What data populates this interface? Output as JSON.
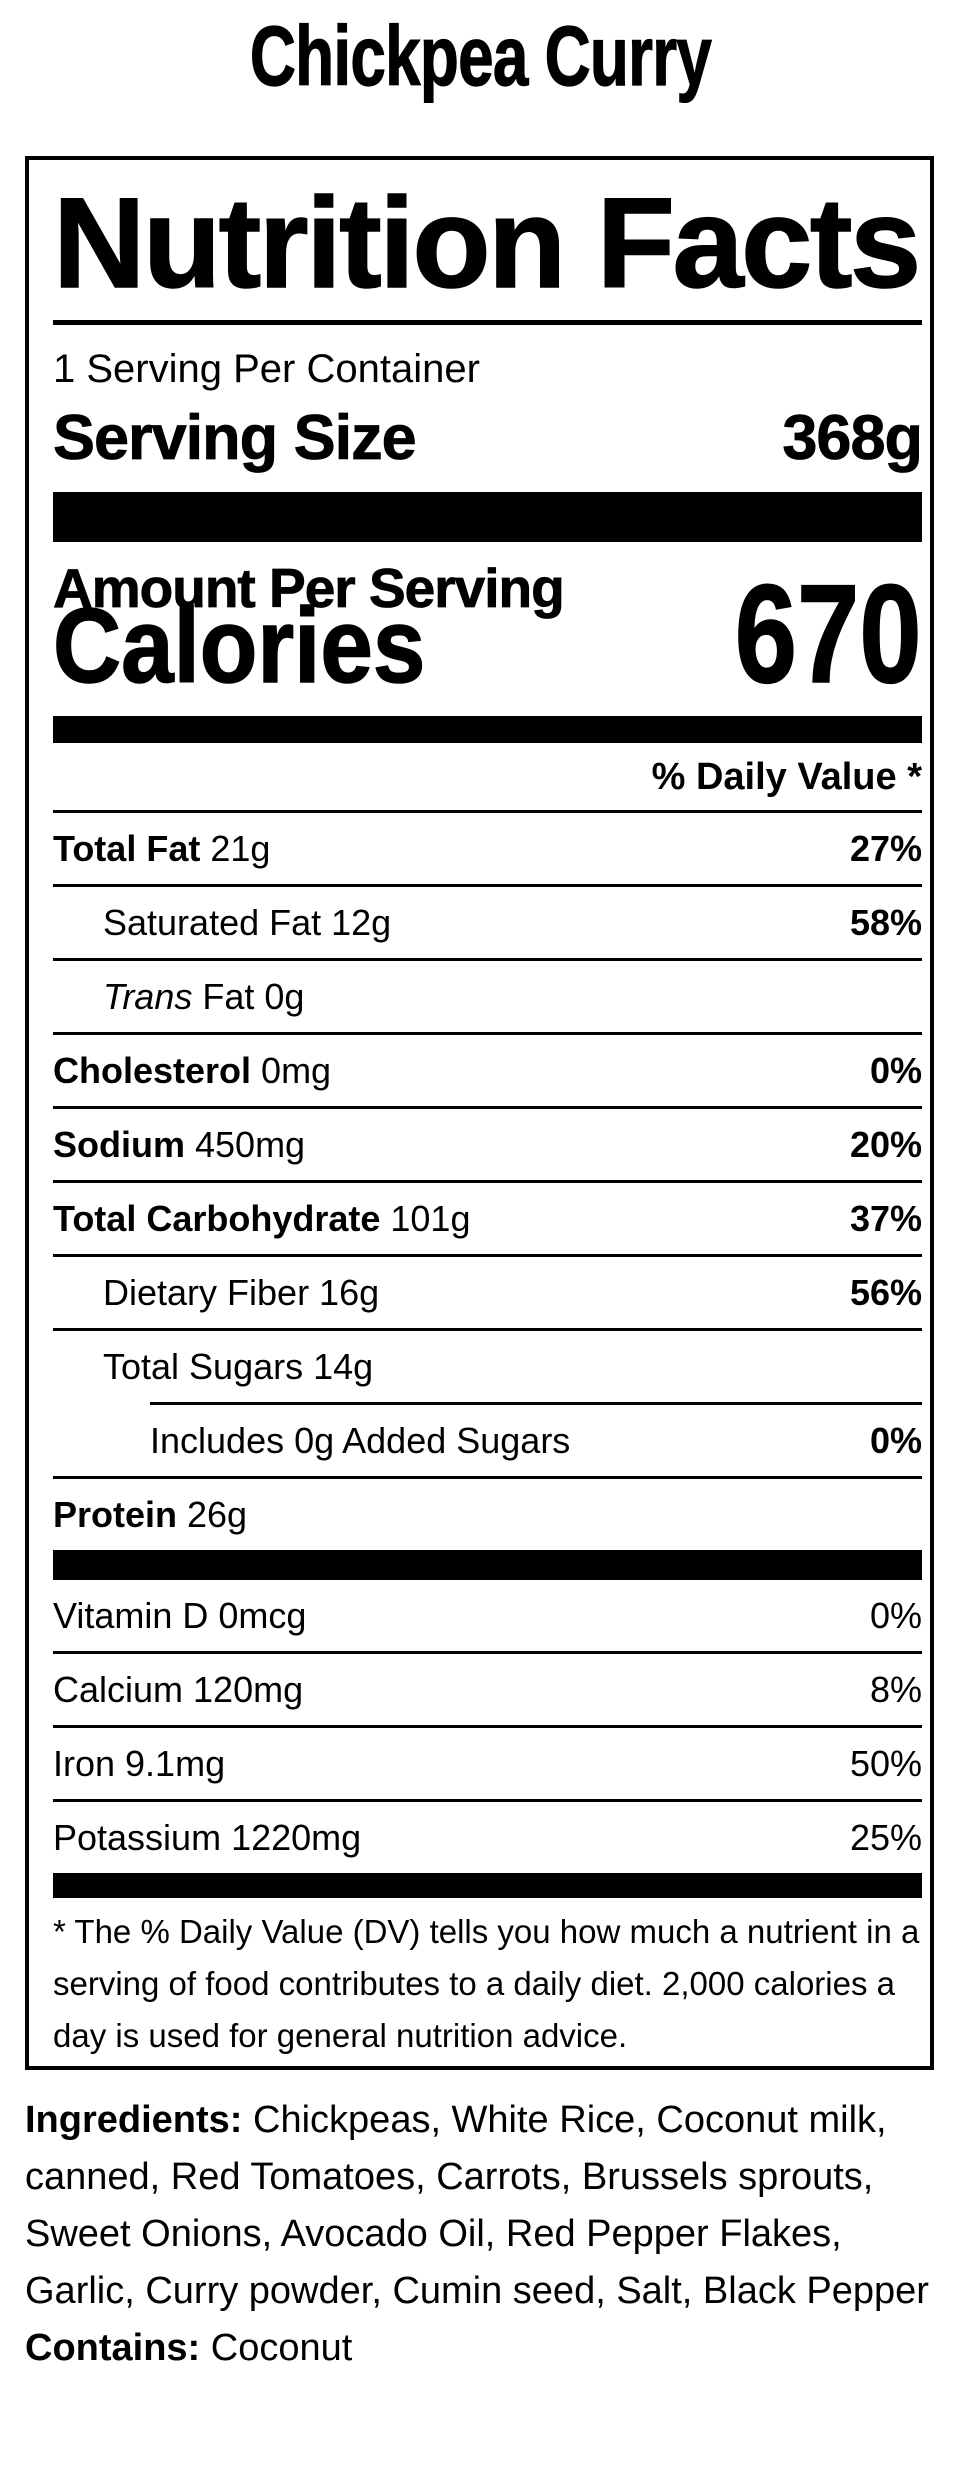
{
  "colors": {
    "text": "#000000",
    "background": "#ffffff"
  },
  "page_title": "Chickpea Curry",
  "label": {
    "heading": "Nutrition Facts",
    "servings_per_container": "1 Serving Per Container",
    "serving_size": {
      "label": "Serving Size",
      "value": "368g"
    },
    "amount_per_serving": "Amount Per Serving",
    "calories": {
      "label": "Calories",
      "value": "670"
    },
    "daily_value_header": "% Daily Value *",
    "nutrients": [
      {
        "bold": "Total Fat",
        "text": " 21g",
        "pct": "27%"
      },
      {
        "text": "Saturated Fat 12g",
        "pct": "58%"
      },
      {
        "italic": "Trans",
        "text": " Fat 0g"
      },
      {
        "bold": "Cholesterol",
        "text": " 0mg",
        "pct": "0%"
      },
      {
        "bold": "Sodium",
        "text": " 450mg",
        "pct": "20%"
      },
      {
        "bold": "Total Carbohydrate",
        "text": " 101g",
        "pct": "37%"
      },
      {
        "text": "Dietary Fiber 16g",
        "pct": "56%"
      },
      {
        "text": "Total Sugars 14g"
      },
      {
        "text": "Includes 0g Added Sugars",
        "pct": "0%"
      },
      {
        "bold": "Protein",
        "text": " 26g"
      }
    ],
    "vitamins": [
      {
        "text": "Vitamin D 0mcg",
        "pct": "0%"
      },
      {
        "text": "Calcium 120mg",
        "pct": "8%"
      },
      {
        "text": "Iron 9.1mg",
        "pct": "50%"
      },
      {
        "text": "Potassium 1220mg",
        "pct": "25%"
      }
    ],
    "footnote": "* The % Daily Value (DV) tells you how much a nutrient in a serving of food contributes to a daily diet. 2,000 calories a day is used for general nutrition advice."
  },
  "ingredients": {
    "label": "Ingredients:",
    "text": " Chickpeas, White Rice, Coconut milk, canned, Red Tomatoes, Carrots, Brussels sprouts, Sweet Onions, Avocado Oil, Red Pepper Flakes, Garlic, Curry powder, Cumin seed, Salt, Black Pepper"
  },
  "contains": {
    "label": "Contains:",
    "text": " Coconut"
  }
}
